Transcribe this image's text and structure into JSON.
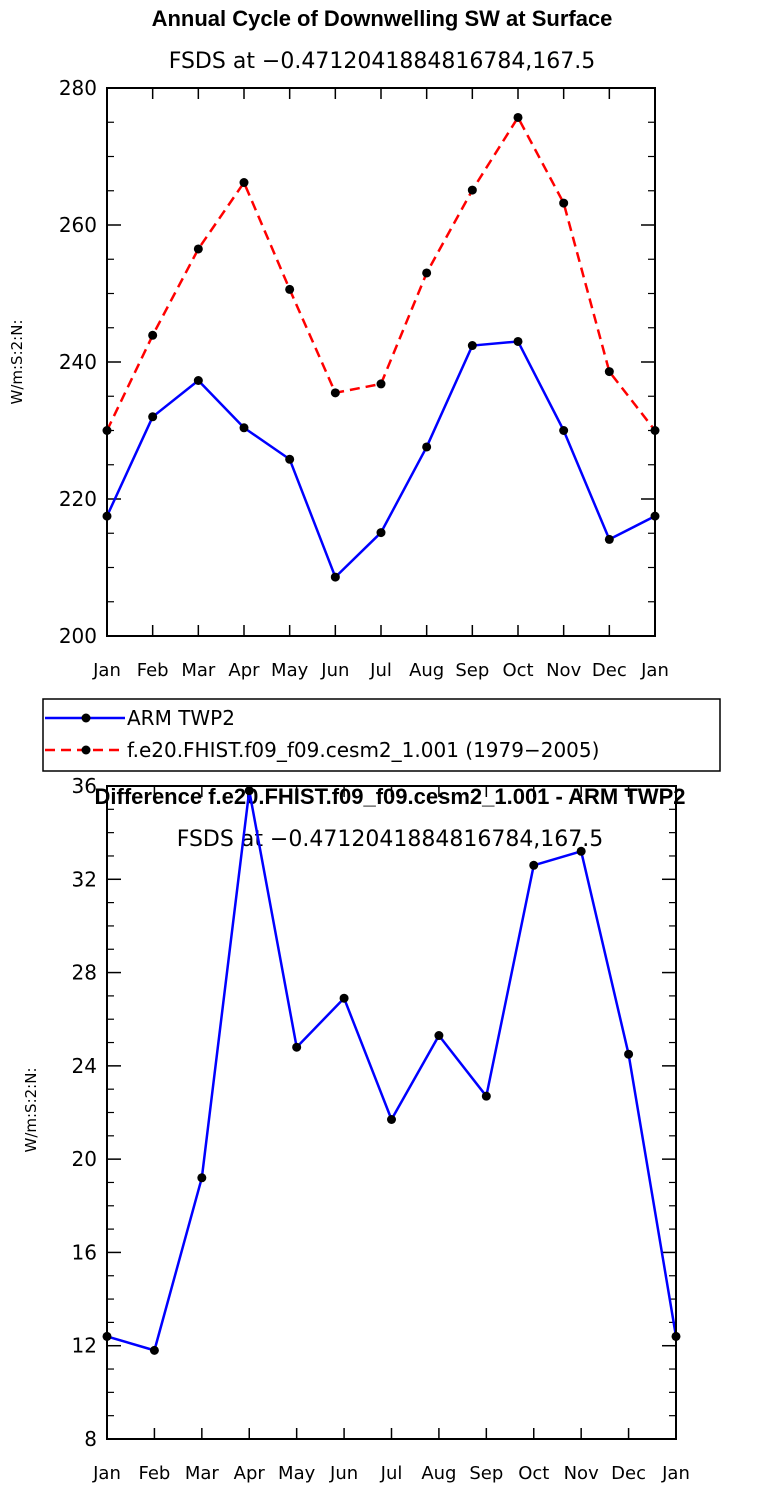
{
  "chart_data": [
    {
      "type": "line",
      "title": "Annual Cycle of Downwelling SW at Surface",
      "subtitle": "FSDS at −0.4712041884816784,167.5",
      "xlabel": "",
      "ylabel": "W/m:S:2:N:",
      "categories": [
        "Jan",
        "Feb",
        "Mar",
        "Apr",
        "May",
        "Jun",
        "Jul",
        "Aug",
        "Sep",
        "Oct",
        "Nov",
        "Dec",
        "Jan"
      ],
      "ylim": [
        200,
        280
      ],
      "yticks": [
        "200",
        "220",
        "240",
        "260",
        "280"
      ],
      "grid": false,
      "series": [
        {
          "name": "ARM TWP2",
          "color": "#0000ff",
          "dash": "solid",
          "values": [
            217.5,
            232,
            237.3,
            230.4,
            225.8,
            208.6,
            215.1,
            227.6,
            242.4,
            243,
            230,
            214.1,
            217.5
          ]
        },
        {
          "name": "f.e20.FHIST.f09_f09.cesm2_1.001 (1979−2005)",
          "color": "#ff0000",
          "dash": "dashed",
          "values": [
            230,
            243.9,
            256.5,
            266.2,
            250.6,
            235.5,
            236.8,
            253,
            265.1,
            275.7,
            263.2,
            238.6,
            230
          ]
        }
      ],
      "legend": [
        "ARM TWP2",
        "f.e20.FHIST.f09_f09.cesm2_1.001 (1979−2005)"
      ]
    },
    {
      "type": "line",
      "title": "Difference f.e20.FHIST.f09_f09.cesm2_1.001 - ARM TWP2",
      "subtitle": "FSDS at −0.4712041884816784,167.5",
      "xlabel": "",
      "ylabel": "W/m:S:2:N:",
      "categories": [
        "Jan",
        "Feb",
        "Mar",
        "Apr",
        "May",
        "Jun",
        "Jul",
        "Aug",
        "Sep",
        "Oct",
        "Nov",
        "Dec",
        "Jan"
      ],
      "ylim": [
        8,
        36
      ],
      "yticks": [
        "8",
        "12",
        "16",
        "20",
        "24",
        "28",
        "32",
        "36"
      ],
      "grid": false,
      "series": [
        {
          "name": "Difference",
          "color": "#0000ff",
          "dash": "solid",
          "values": [
            12.4,
            11.8,
            19.2,
            35.8,
            24.8,
            26.9,
            21.7,
            25.3,
            22.7,
            32.6,
            33.2,
            24.5,
            12.4
          ]
        }
      ]
    }
  ]
}
